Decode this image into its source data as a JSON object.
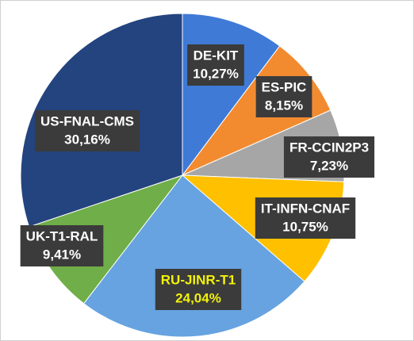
{
  "chart_data": {
    "type": "pie",
    "categories": [
      "DE-KIT",
      "ES-PIC",
      "FR-CCIN2P3",
      "IT-INFN-CNAF",
      "RU-JINR-T1",
      "UK-T1-RAL",
      "US-FNAL-CMS"
    ],
    "values": [
      10.27,
      8.15,
      7.23,
      10.75,
      24.04,
      9.41,
      30.16
    ],
    "value_labels": [
      "10,27%",
      "8,15%",
      "7,23%",
      "10,75%",
      "24,04%",
      "9,41%",
      "30,16%"
    ],
    "colors": [
      "#3f7ad6",
      "#f28b30",
      "#a6a6a6",
      "#ffc000",
      "#66a3e0",
      "#6fae48",
      "#23447f"
    ],
    "label_colors": [
      "#ffffff",
      "#ffffff",
      "#ffffff",
      "#ffffff",
      "#f2f20a",
      "#ffffff",
      "#ffffff"
    ]
  }
}
